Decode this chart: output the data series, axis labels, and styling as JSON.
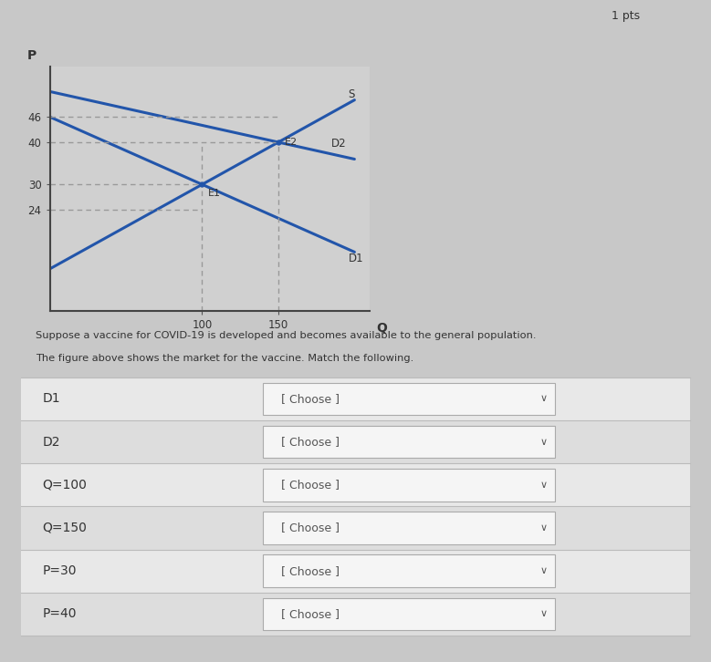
{
  "bg_color": "#c8c8c8",
  "panel_color": "#e2e2e2",
  "chart_bg": "#d0d0d0",
  "title_text": "1 pts",
  "question_line1": "Suppose a vaccine for COVID-19 is developed and becomes available to the general population.",
  "question_line2": "The figure above shows the market for the vaccine. Match the following.",
  "p_axis_label": "P",
  "q_axis_label": "Q",
  "yticks": [
    24,
    30,
    40,
    46
  ],
  "xticks": [
    100,
    150
  ],
  "line_color": "#2255aa",
  "dashed_color": "#999999",
  "e1_label": "E1",
  "e2_label": "E2",
  "s_label": "S",
  "d1_label": "D1",
  "d2_label": "D2",
  "match_items": [
    "D1",
    "D2",
    "Q=100",
    "Q=150",
    "P=30",
    "P=40"
  ],
  "choose_label": "[ Choose ]",
  "row_bg_even": "#e8e8e8",
  "row_bg_odd": "#dddddd",
  "separator_color": "#bbbbbb",
  "box_color": "#f5f5f5",
  "box_border": "#aaaaaa",
  "text_color": "#333333",
  "supply_slope": 0.2,
  "supply_intercept": 10,
  "d1_intercept": 46,
  "d1_slope": -0.16,
  "d2_intercept": 52,
  "d2_slope": -0.08
}
